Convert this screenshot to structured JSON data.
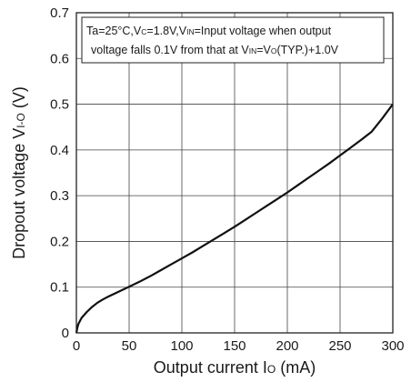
{
  "chart_data": {
    "type": "line",
    "xlabel": {
      "main": "Output current I",
      "sub": "O",
      "unit": " (mA)"
    },
    "ylabel": {
      "main": "Dropout voltage V",
      "sub": "I-O",
      "unit": " (V)"
    },
    "xlim": [
      0,
      300
    ],
    "ylim": [
      0,
      0.7
    ],
    "x_ticks": [
      "0",
      "50",
      "100",
      "150",
      "200",
      "250",
      "300"
    ],
    "y_ticks": [
      "0",
      "0.1",
      "0.2",
      "0.3",
      "0.4",
      "0.5",
      "0.6",
      "0.7"
    ],
    "grid": true,
    "annotation": {
      "line1": [
        {
          "t": "Ta=25°C,V"
        },
        {
          "t": "C",
          "sub": true
        },
        {
          "t": "=1.8V,V"
        },
        {
          "t": "IN",
          "sub": true
        },
        {
          "t": "=Input voltage when output"
        }
      ],
      "line2": [
        {
          "t": "voltage falls 0.1V from that at V"
        },
        {
          "t": "IN",
          "sub": true
        },
        {
          "t": "=V"
        },
        {
          "t": "O",
          "sub": true
        },
        {
          "t": "(TYP.)+1.0V"
        }
      ]
    },
    "series": [
      {
        "x": [
          0,
          1,
          2,
          5,
          10,
          15,
          20,
          25,
          30,
          40,
          50,
          60,
          70,
          80,
          90,
          100,
          110,
          120,
          130,
          140,
          150,
          160,
          170,
          180,
          190,
          200,
          210,
          220,
          230,
          240,
          250,
          260,
          270,
          280,
          290,
          300
        ],
        "y": [
          0,
          0.012,
          0.02,
          0.033,
          0.046,
          0.057,
          0.066,
          0.073,
          0.079,
          0.09,
          0.101,
          0.112,
          0.124,
          0.137,
          0.15,
          0.163,
          0.176,
          0.19,
          0.204,
          0.218,
          0.232,
          0.247,
          0.262,
          0.277,
          0.292,
          0.307,
          0.323,
          0.339,
          0.355,
          0.371,
          0.388,
          0.405,
          0.422,
          0.44,
          0.469,
          0.5
        ]
      }
    ]
  }
}
